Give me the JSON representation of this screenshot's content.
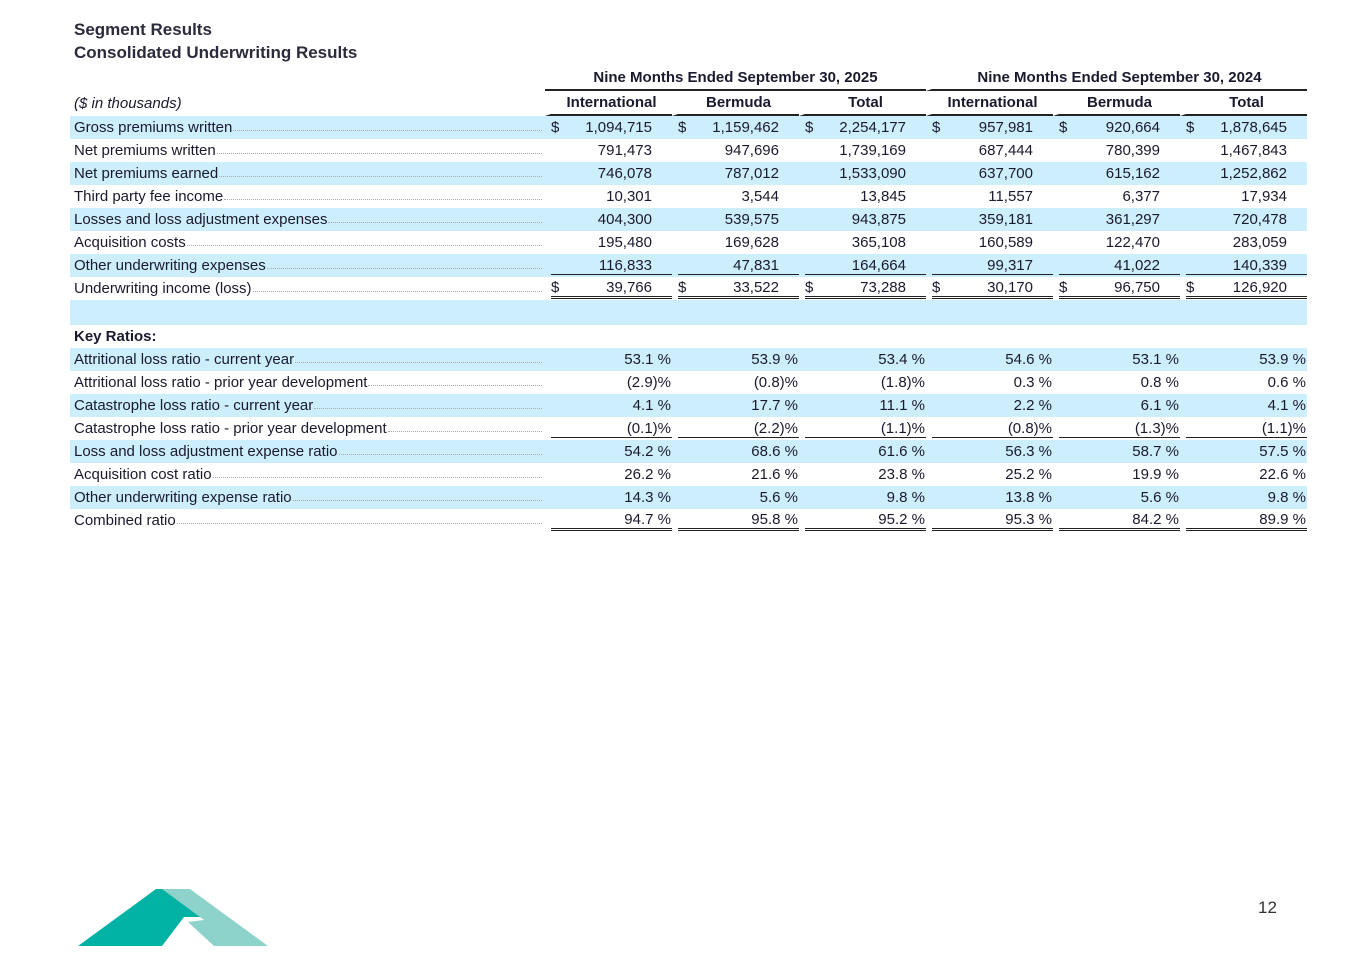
{
  "title": "Segment Results",
  "subtitle": "Consolidated Underwriting Results",
  "unit_label": "($ in thousands)",
  "period_headers": [
    "Nine Months Ended September 30, 2025",
    "Nine Months Ended September 30, 2024"
  ],
  "column_headers": [
    "International",
    "Bermuda",
    "Total",
    "International",
    "Bermuda",
    "Total"
  ],
  "rows": [
    {
      "label": "Gross premiums written",
      "dollar": true,
      "values": [
        "1,094,715",
        "1,159,462",
        "2,254,177",
        "957,981",
        "920,664",
        "1,878,645"
      ]
    },
    {
      "label": "Net premiums written",
      "values": [
        "791,473",
        "947,696",
        "1,739,169",
        "687,444",
        "780,399",
        "1,467,843"
      ]
    },
    {
      "label": "Net premiums earned",
      "values": [
        "746,078",
        "787,012",
        "1,533,090",
        "637,700",
        "615,162",
        "1,252,862"
      ]
    },
    {
      "label": "Third party fee income",
      "values": [
        "10,301",
        "3,544",
        "13,845",
        "11,557",
        "6,377",
        "17,934"
      ]
    },
    {
      "label": "Losses and loss adjustment expenses",
      "values": [
        "404,300",
        "539,575",
        "943,875",
        "359,181",
        "361,297",
        "720,478"
      ]
    },
    {
      "label": "Acquisition costs",
      "values": [
        "195,480",
        "169,628",
        "365,108",
        "160,589",
        "122,470",
        "283,059"
      ]
    },
    {
      "label": "Other underwriting expenses",
      "values": [
        "116,833",
        "47,831",
        "164,664",
        "99,317",
        "41,022",
        "140,339"
      ]
    },
    {
      "label": "Underwriting income (loss)",
      "dollar": true,
      "values": [
        "39,766",
        "33,522",
        "73,288",
        "30,170",
        "96,750",
        "126,920"
      ]
    }
  ],
  "key_ratios_label": "Key Ratios:",
  "ratios": [
    {
      "label": "Attritional loss ratio - current year",
      "values": [
        "53.1 %",
        "53.9 %",
        "53.4 %",
        "54.6 %",
        "53.1 %",
        "53.9 %"
      ]
    },
    {
      "label": "Attritional loss ratio - prior year development",
      "values": [
        "(2.9)%",
        "(0.8)%",
        "(1.8)%",
        "0.3 %",
        "0.8 %",
        "0.6 %"
      ]
    },
    {
      "label": "Catastrophe loss ratio - current year",
      "values": [
        "4.1 %",
        "17.7 %",
        "11.1 %",
        "2.2 %",
        "6.1 %",
        "4.1 %"
      ]
    },
    {
      "label": "Catastrophe loss ratio - prior year development",
      "values": [
        "(0.1)%",
        "(2.2)%",
        "(1.1)%",
        "(0.8)%",
        "(1.3)%",
        "(1.1)%"
      ]
    },
    {
      "label": "Loss and loss adjustment expense ratio",
      "values": [
        "54.2 %",
        "68.6 %",
        "61.6 %",
        "56.3 %",
        "58.7 %",
        "57.5 %"
      ]
    },
    {
      "label": "Acquisition cost ratio",
      "values": [
        "26.2 %",
        "21.6 %",
        "23.8 %",
        "25.2 %",
        "19.9 %",
        "22.6 %"
      ]
    },
    {
      "label": "Other underwriting expense ratio",
      "values": [
        "14.3 %",
        "5.6 %",
        "9.8 %",
        "13.8 %",
        "5.6 %",
        "9.8 %"
      ]
    },
    {
      "label": "Combined ratio",
      "values": [
        "94.7 %",
        "95.8 %",
        "95.2 %",
        "95.3 %",
        "84.2 %",
        "89.9 %"
      ]
    }
  ],
  "page_number": "12",
  "colors": {
    "row_highlight": "#cdeefd",
    "logo_dark": "#00b2a4",
    "logo_light": "#8dd3cc"
  },
  "logo_icon": "company-logo"
}
